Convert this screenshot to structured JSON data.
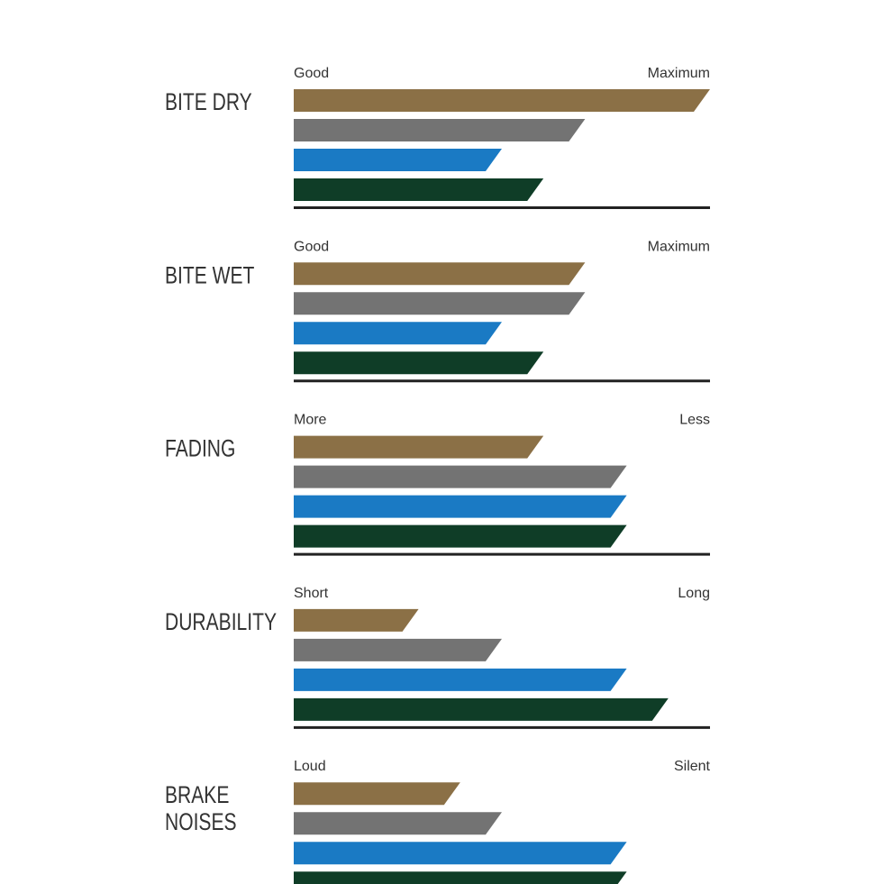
{
  "chart_data": [
    {
      "type": "bar",
      "title_lines": [
        "BITE DRY"
      ],
      "scale_labels": [
        "Good",
        "Maximum"
      ],
      "xlim": [
        0,
        10
      ],
      "values": [
        10,
        7,
        5,
        6
      ],
      "colors": [
        "#8b7046",
        "#737373",
        "#1a7ac4",
        "#0f3d27"
      ]
    },
    {
      "type": "bar",
      "title_lines": [
        "BITE WET"
      ],
      "scale_labels": [
        "Good",
        "Maximum"
      ],
      "xlim": [
        0,
        10
      ],
      "values": [
        7,
        7,
        5,
        6
      ],
      "colors": [
        "#8b7046",
        "#737373",
        "#1a7ac4",
        "#0f3d27"
      ]
    },
    {
      "type": "bar",
      "title_lines": [
        "FADING"
      ],
      "scale_labels": [
        "More",
        "Less"
      ],
      "xlim": [
        0,
        10
      ],
      "values": [
        6,
        8,
        8,
        8
      ],
      "colors": [
        "#8b7046",
        "#737373",
        "#1a7ac4",
        "#0f3d27"
      ]
    },
    {
      "type": "bar",
      "title_lines": [
        "DURABILITY"
      ],
      "scale_labels": [
        "Short",
        "Long"
      ],
      "xlim": [
        0,
        10
      ],
      "values": [
        3,
        5,
        8,
        9
      ],
      "colors": [
        "#8b7046",
        "#737373",
        "#1a7ac4",
        "#0f3d27"
      ]
    },
    {
      "type": "bar",
      "title_lines": [
        "BRAKE",
        "NOISES"
      ],
      "scale_labels": [
        "Loud",
        "Silent"
      ],
      "xlim": [
        0,
        10
      ],
      "values": [
        4,
        5,
        8,
        8
      ],
      "colors": [
        "#8b7046",
        "#737373",
        "#1a7ac4",
        "#0f3d27"
      ]
    }
  ]
}
